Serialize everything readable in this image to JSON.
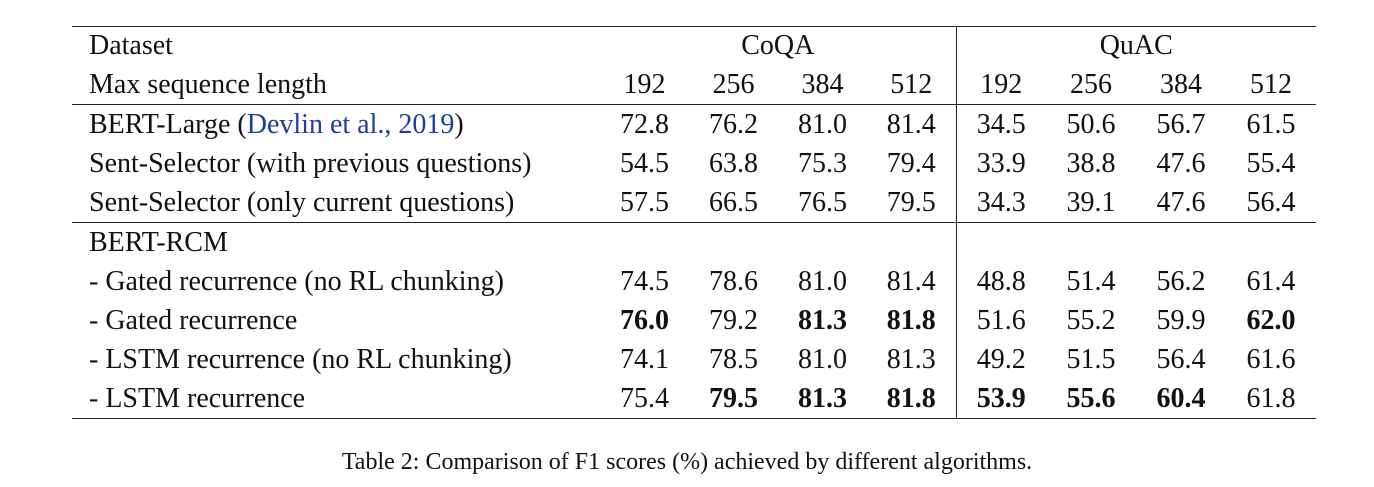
{
  "table": {
    "dataset_label": "Dataset",
    "group1": "CoQA",
    "group2": "QuAC",
    "seq_label": "Max sequence length",
    "seq_lengths": [
      "192",
      "256",
      "384",
      "512",
      "192",
      "256",
      "384",
      "512"
    ],
    "rows": [
      {
        "label_pre": "BERT-Large (",
        "cite": "Devlin et al., 2019",
        "label_post": ")",
        "values": [
          "72.8",
          "76.2",
          "81.0",
          "81.4",
          "34.5",
          "50.6",
          "56.7",
          "61.5"
        ],
        "bold": [
          false,
          false,
          false,
          false,
          false,
          false,
          false,
          false
        ]
      },
      {
        "label": "Sent-Selector (with previous questions)",
        "values": [
          "54.5",
          "63.8",
          "75.3",
          "79.4",
          "33.9",
          "38.8",
          "47.6",
          "55.4"
        ],
        "bold": [
          false,
          false,
          false,
          false,
          false,
          false,
          false,
          false
        ]
      },
      {
        "label": "Sent-Selector (only current questions)",
        "values": [
          "57.5",
          "66.5",
          "76.5",
          "79.5",
          "34.3",
          "39.1",
          "47.6",
          "56.4"
        ],
        "bold": [
          false,
          false,
          false,
          false,
          false,
          false,
          false,
          false
        ]
      },
      {
        "label": "BERT-RCM",
        "values": [
          "",
          "",
          "",
          "",
          "",
          "",
          "",
          ""
        ],
        "bold": [
          false,
          false,
          false,
          false,
          false,
          false,
          false,
          false
        ]
      },
      {
        "label": "- Gated recurrence (no RL chunking)",
        "values": [
          "74.5",
          "78.6",
          "81.0",
          "81.4",
          "48.8",
          "51.4",
          "56.2",
          "61.4"
        ],
        "bold": [
          false,
          false,
          false,
          false,
          false,
          false,
          false,
          false
        ]
      },
      {
        "label": "- Gated recurrence",
        "values": [
          "76.0",
          "79.2",
          "81.3",
          "81.8",
          "51.6",
          "55.2",
          "59.9",
          "62.0"
        ],
        "bold": [
          true,
          false,
          true,
          true,
          false,
          false,
          false,
          true
        ]
      },
      {
        "label": "- LSTM recurrence (no RL chunking)",
        "values": [
          "74.1",
          "78.5",
          "81.0",
          "81.3",
          "49.2",
          "51.5",
          "56.4",
          "61.6"
        ],
        "bold": [
          false,
          false,
          false,
          false,
          false,
          false,
          false,
          false
        ]
      },
      {
        "label": "- LSTM recurrence",
        "values": [
          "75.4",
          "79.5",
          "81.3",
          "81.8",
          "53.9",
          "55.6",
          "60.4",
          "61.8"
        ],
        "bold": [
          false,
          true,
          true,
          true,
          true,
          true,
          true,
          false
        ]
      }
    ]
  },
  "caption": "Table 2: Comparison of F1 scores (%) achieved by different algorithms.",
  "colors": {
    "citation": "#1a3fa0",
    "text": "#111111"
  }
}
